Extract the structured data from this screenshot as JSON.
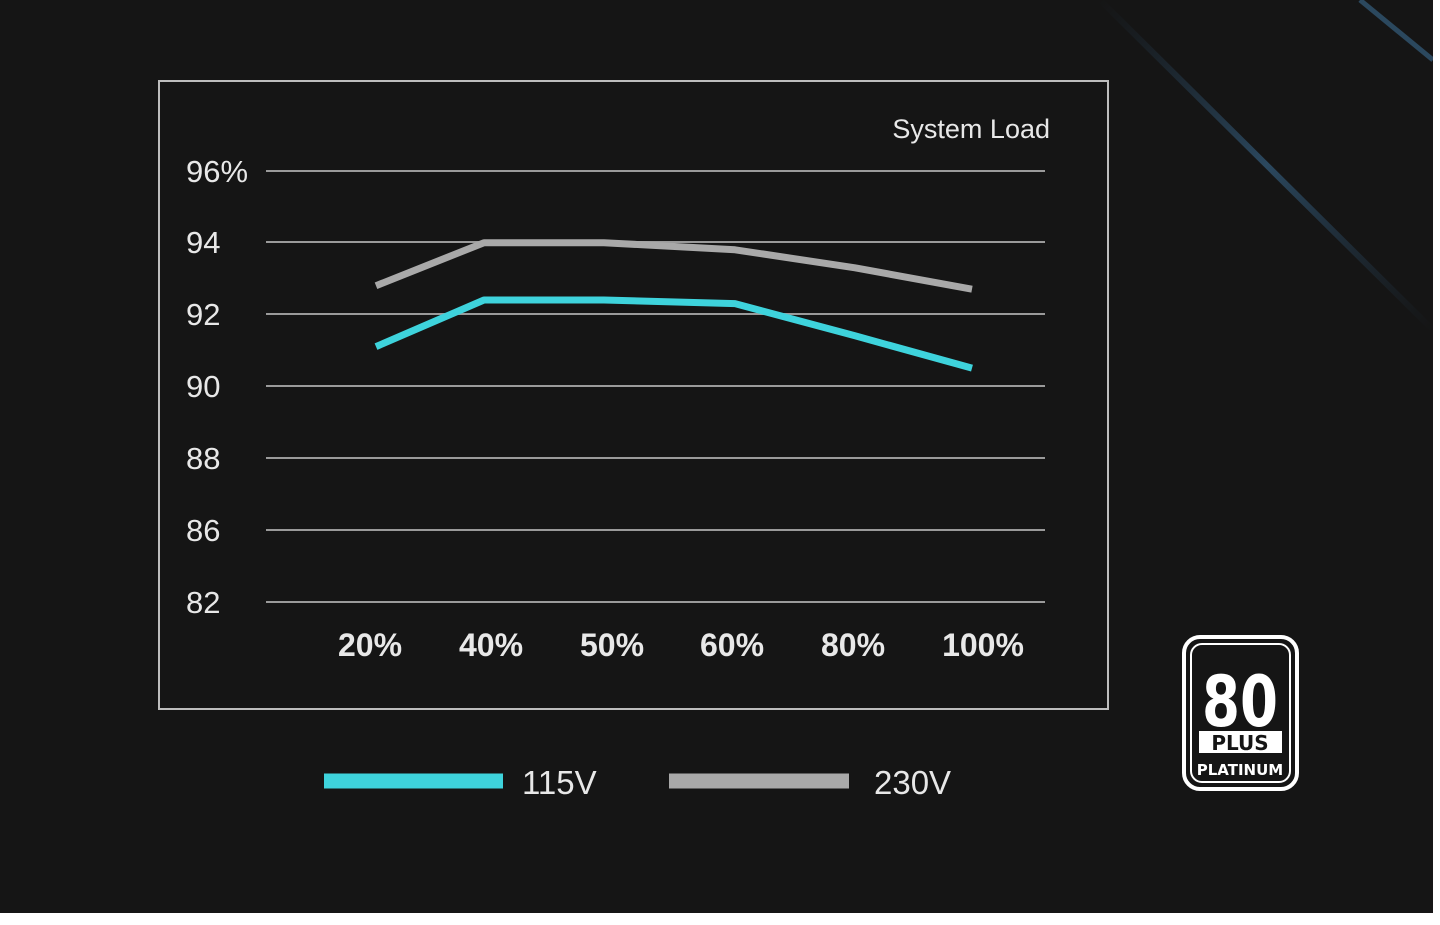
{
  "chart_data": {
    "type": "line",
    "title": "System Load",
    "categories": [
      "20%",
      "40%",
      "50%",
      "60%",
      "80%",
      "100%"
    ],
    "y_ticks": [
      "96%",
      "94",
      "92",
      "90",
      "88",
      "86",
      "82"
    ],
    "series": [
      {
        "name": "115V",
        "color": "#3ed3dc",
        "values": [
          91.1,
          92.4,
          92.4,
          92.3,
          91.4,
          90.5
        ]
      },
      {
        "name": "230V",
        "color": "#a9a9a9",
        "values": [
          92.8,
          94.0,
          94.0,
          93.8,
          93.3,
          92.7
        ]
      }
    ],
    "grid": true,
    "legend": "bottom"
  },
  "badge": {
    "number": "80",
    "plus": "PLUS",
    "tier": "PLATINUM"
  },
  "colors": {
    "background": "#151515",
    "frame": "#bdbdbd",
    "grid": "#9a9a9a",
    "text": "#e8e8e8"
  }
}
